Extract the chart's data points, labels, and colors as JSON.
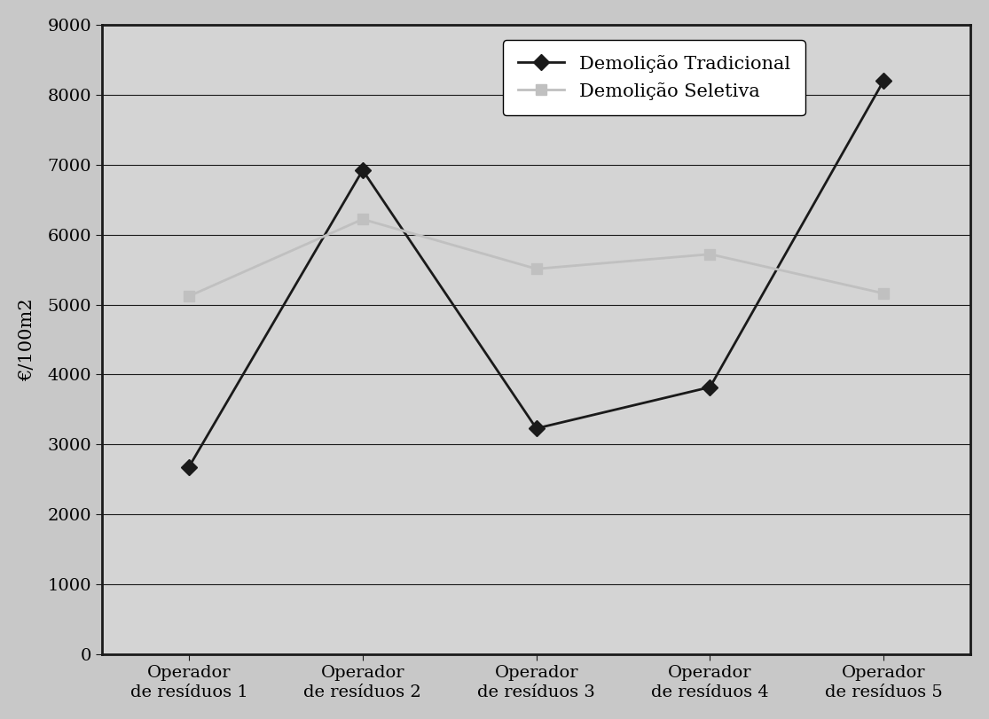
{
  "x_labels": [
    "Operador\nde resíduos 1",
    "Operador\nde resíduos 2",
    "Operador\nde resíduos 3",
    "Operador\nde resíduos 4",
    "Operador\nde resíduos 5"
  ],
  "tradicional_values": [
    2680,
    6920,
    3230,
    3820,
    8200
  ],
  "seletiva_values": [
    5120,
    6220,
    5510,
    5720,
    5160
  ],
  "tradicional_label": "Demolição Tradicional",
  "seletiva_label": "Demolição Seletiva",
  "tradicional_color": "#1a1a1a",
  "seletiva_color": "#c0c0c0",
  "ylabel": "€/100m2",
  "ylim": [
    0,
    9000
  ],
  "yticks": [
    0,
    1000,
    2000,
    3000,
    4000,
    5000,
    6000,
    7000,
    8000,
    9000
  ],
  "outer_bg_color": "#c8c8c8",
  "plot_bg_color": "#d4d4d4",
  "grid_color": "#1a1a1a",
  "legend_fontsize": 15,
  "axis_fontsize": 15,
  "tick_fontsize": 14,
  "line_width": 2.0,
  "marker_size": 9
}
